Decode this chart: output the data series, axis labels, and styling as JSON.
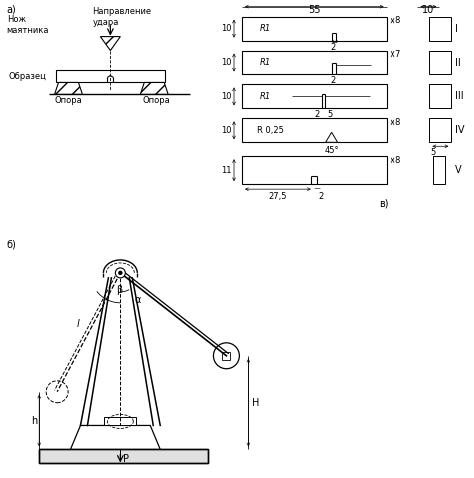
{
  "bg_color": "#ffffff",
  "line_color": "#000000",
  "fig_width": 4.74,
  "fig_height": 4.78,
  "dpi": 100,
  "label_a": "a)",
  "label_b": "б)",
  "label_v": "в)",
  "text_nozh": "Нож\nмаятника",
  "text_napr": "Направление\nудара",
  "text_obrazec": "Образец",
  "text_opora1": "Опора",
  "text_opora2": "Опора",
  "roman_I": "I",
  "roman_II": "II",
  "roman_III": "III",
  "roman_IV": "IV",
  "roman_V": "V",
  "dim_55": "55",
  "dim_10_top": "10",
  "dim_10_left": "10",
  "dim_R1": "R1",
  "dim_8": "8",
  "dim_2": "2",
  "dim_7": "7",
  "dim_5": "5",
  "dim_R025": "R 0,25",
  "dim_45deg": "45°",
  "dim_11": "11",
  "dim_275": "27,5",
  "dim_H": "H",
  "dim_h": "h",
  "dim_alpha": "α",
  "dim_beta": "β",
  "dim_P": "P",
  "dim_l": "l"
}
